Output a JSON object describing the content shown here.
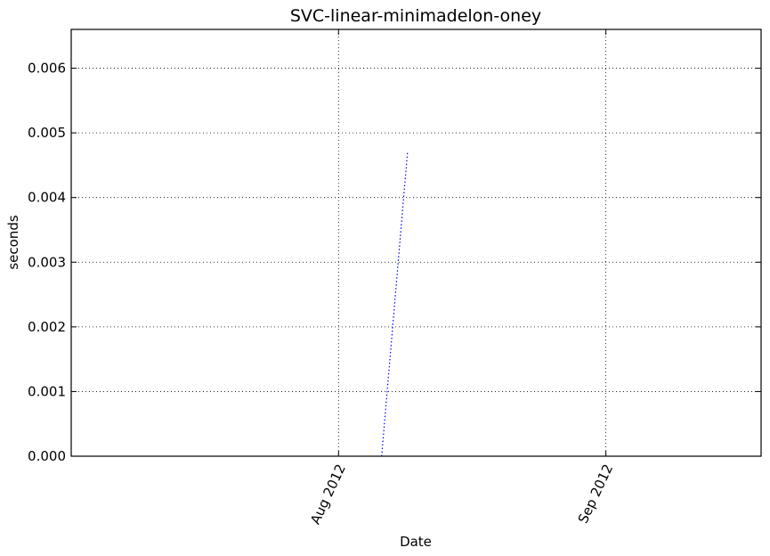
{
  "chart_data": {
    "type": "line",
    "title": "SVC-linear-minimadelon-oney",
    "xlabel": "Date",
    "ylabel": "seconds",
    "x_scale": "date",
    "xlim": [
      "2012-07-01",
      "2012-09-19"
    ],
    "ylim": [
      0,
      0.0066
    ],
    "grid": true,
    "x_ticks": [
      {
        "date": "2012-08-01",
        "label": "Aug 2012"
      },
      {
        "date": "2012-09-01",
        "label": "Sep 2012"
      }
    ],
    "y_ticks": [
      "0.000",
      "0.001",
      "0.002",
      "0.003",
      "0.004",
      "0.005",
      "0.006"
    ],
    "series": [
      {
        "color": "#0000ff",
        "points": [
          {
            "x": "2012-08-06",
            "y": 0.0
          },
          {
            "x": "2012-08-09",
            "y": 0.0047
          }
        ]
      }
    ]
  }
}
